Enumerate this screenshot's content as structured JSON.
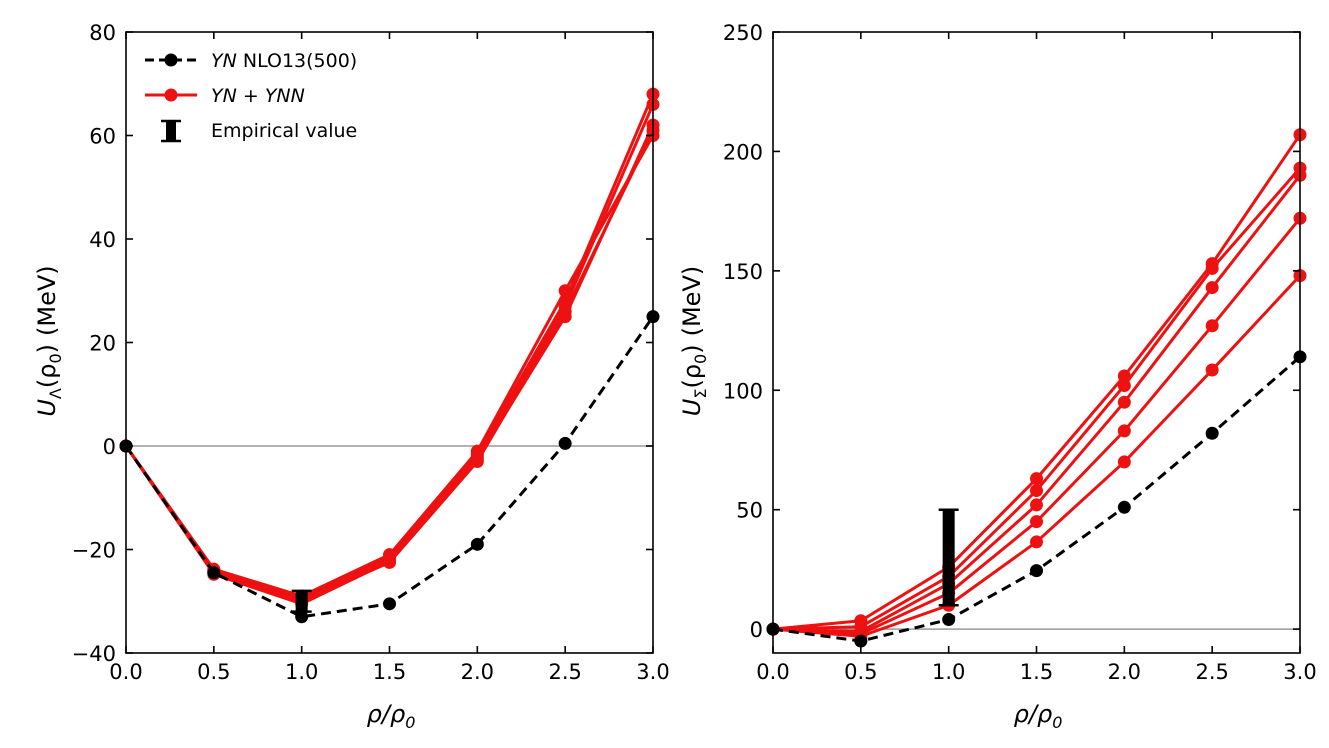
{
  "colors": {
    "baseline": "#000000",
    "threebody": "#ee1111",
    "zero_line": "#999999",
    "empirical": "#000000"
  },
  "legend": {
    "baseline_italic": "YN",
    "baseline_rest": " NLO13(500)",
    "threebody_a": "YN",
    "threebody_plus": " + ",
    "threebody_b": "YNN",
    "empirical": "Empirical value"
  },
  "chart_data": [
    {
      "type": "line",
      "xlabel": "ρ/ρ0",
      "ylabel": "UΛ(ρ0) (MeV)",
      "ylabel_parts": {
        "sym": "U",
        "sub": "Λ",
        "arg": "(ρ",
        "arg_sub": "0",
        "close": ")",
        "unit": "(MeV)"
      },
      "xlabel_parts": {
        "main": "ρ/ρ",
        "sub": "0"
      },
      "xlim": [
        0.0,
        3.0
      ],
      "ylim": [
        -40,
        80
      ],
      "x_ticks": [
        "0.0",
        "0.5",
        "1.0",
        "1.5",
        "2.0",
        "2.5",
        "3.0"
      ],
      "y_ticks": [
        "−40",
        "−20",
        "0",
        "20",
        "40",
        "60",
        "80"
      ],
      "y_tick_values": [
        -40,
        -20,
        0,
        20,
        40,
        60,
        80
      ],
      "x": [
        0.0,
        0.5,
        1.0,
        1.5,
        2.0,
        2.5,
        3.0
      ],
      "baseline": {
        "name": "YN NLO13(500)",
        "values": [
          0,
          -24.5,
          -33,
          -30.5,
          -19,
          0.5,
          25
        ]
      },
      "series": [
        {
          "name": "YN + YNN",
          "values": [
            0,
            -24,
            -29.5,
            -21.5,
            -1.5,
            28,
            68
          ]
        },
        {
          "name": "YN + YNN",
          "values": [
            0,
            -24.2,
            -29.8,
            -22,
            -2,
            27,
            66
          ]
        },
        {
          "name": "YN + YNN",
          "values": [
            0,
            -24.5,
            -30,
            -22.5,
            -3,
            26,
            61
          ]
        },
        {
          "name": "YN + YNN",
          "values": [
            0,
            -23.8,
            -29,
            -21,
            -1,
            30,
            60
          ]
        },
        {
          "name": "YN + YNN",
          "values": [
            0,
            -24.8,
            -30.5,
            -22.3,
            -2.5,
            25,
            62
          ]
        }
      ],
      "empirical": {
        "x": 1.0,
        "low": -32,
        "high": -28
      },
      "legend_position": "top-left"
    },
    {
      "type": "line",
      "xlabel": "ρ/ρ0",
      "ylabel": "UΣ(ρ0) (MeV)",
      "ylabel_parts": {
        "sym": "U",
        "sub": "Σ",
        "arg": "(ρ",
        "arg_sub": "0",
        "close": ")",
        "unit": "(MeV)"
      },
      "xlabel_parts": {
        "main": "ρ/ρ",
        "sub": "0"
      },
      "xlim": [
        0.0,
        3.0
      ],
      "ylim": [
        -10,
        250
      ],
      "x_ticks": [
        "0.0",
        "0.5",
        "1.0",
        "1.5",
        "2.0",
        "2.5",
        "3.0"
      ],
      "y_ticks": [
        "0",
        "50",
        "100",
        "150",
        "200",
        "250"
      ],
      "y_tick_values": [
        0,
        50,
        100,
        150,
        200,
        250
      ],
      "x": [
        0.0,
        0.5,
        1.0,
        1.5,
        2.0,
        2.5,
        3.0
      ],
      "baseline": {
        "name": "YN NLO13(500)",
        "values": [
          0,
          -5,
          4,
          24.5,
          51,
          82,
          114
        ]
      },
      "series": [
        {
          "name": "YN + YNN",
          "values": [
            0,
            3.5,
            26,
            63,
            106,
            153,
            207
          ]
        },
        {
          "name": "YN + YNN",
          "values": [
            0,
            1,
            22,
            58,
            102,
            151,
            193
          ]
        },
        {
          "name": "YN + YNN",
          "values": [
            0,
            -1,
            19,
            52,
            95,
            143,
            190
          ]
        },
        {
          "name": "YN + YNN",
          "values": [
            0,
            -2,
            15,
            45,
            83,
            127,
            172
          ]
        },
        {
          "name": "YN + YNN",
          "values": [
            0,
            -3,
            10,
            36.5,
            70,
            108.5,
            148
          ]
        }
      ],
      "empirical": {
        "x": 1.0,
        "low": 10,
        "high": 50
      }
    }
  ]
}
